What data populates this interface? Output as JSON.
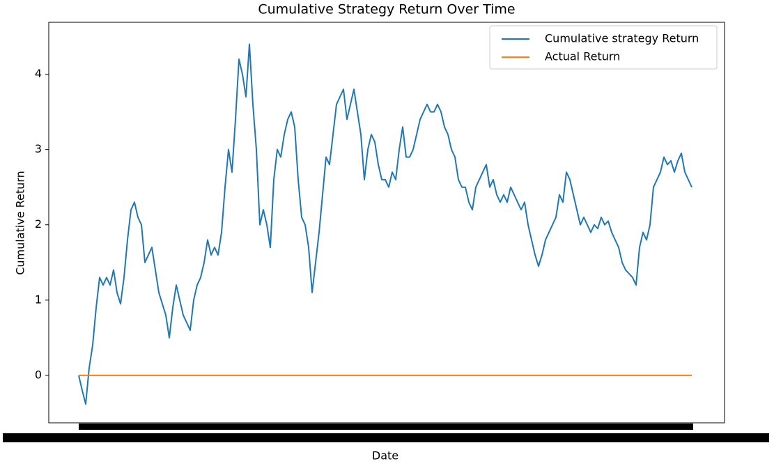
{
  "chart_data": {
    "type": "line",
    "title": "Cumulative Strategy Return Over Time",
    "x_label": "Date",
    "y_label": "Cumulative Return",
    "ylim": [
      -0.63,
      4.69
    ],
    "yticks": [
      0,
      1,
      2,
      3,
      4
    ],
    "grid": false,
    "legend": "upper right",
    "categories": [
      null,
      null,
      null,
      null,
      null,
      null,
      null,
      null,
      null,
      null,
      null,
      null,
      null,
      null,
      null,
      null,
      null,
      null,
      null,
      null,
      null,
      null,
      null,
      null,
      null,
      null,
      null,
      null,
      null,
      null,
      null,
      null,
      null,
      null,
      null,
      null,
      null,
      null,
      null,
      null,
      null,
      null,
      null,
      null,
      null,
      null,
      null,
      null,
      null,
      null,
      null,
      null,
      null,
      null,
      null,
      null,
      null,
      null,
      null,
      null,
      null,
      null,
      null,
      null,
      null,
      null,
      null,
      null,
      null,
      null,
      null,
      null,
      null,
      null,
      null,
      null,
      null,
      null,
      null,
      null,
      null,
      null,
      null,
      null,
      null,
      null,
      null,
      null,
      null,
      null,
      null,
      null,
      null,
      null,
      null,
      null,
      null,
      null,
      null,
      null,
      null,
      null,
      null,
      null,
      null,
      null,
      null,
      null,
      null,
      null,
      null,
      null,
      null,
      null,
      null,
      null,
      null,
      null,
      null,
      null,
      null,
      null,
      null,
      null,
      null,
      null,
      null,
      null,
      null,
      null,
      null,
      null,
      null,
      null,
      null,
      null,
      null,
      null,
      null,
      null,
      null,
      null,
      null,
      null,
      null,
      null,
      null,
      null,
      null,
      null,
      null,
      null,
      null,
      null,
      null,
      null,
      null,
      null,
      null,
      null,
      null,
      null,
      null,
      null,
      null,
      null,
      null,
      null,
      null,
      null,
      null,
      null,
      null,
      null,
      null,
      null,
      null
    ],
    "series": [
      {
        "name": "Cumulative strategy Return",
        "color": "#1f77b4",
        "values": [
          0,
          -0.2,
          -0.38,
          0.1,
          0.4,
          0.9,
          1.3,
          1.2,
          1.3,
          1.2,
          1.4,
          1.1,
          0.95,
          1.3,
          1.8,
          2.2,
          2.3,
          2.1,
          2.0,
          1.5,
          1.6,
          1.7,
          1.4,
          1.1,
          0.95,
          0.8,
          0.5,
          0.9,
          1.2,
          1.0,
          0.8,
          0.7,
          0.6,
          1.0,
          1.2,
          1.3,
          1.5,
          1.8,
          1.6,
          1.7,
          1.6,
          1.9,
          2.5,
          3.0,
          2.7,
          3.4,
          4.2,
          4.0,
          3.7,
          4.4,
          3.6,
          3.0,
          2.0,
          2.2,
          2.0,
          1.7,
          2.6,
          3.0,
          2.9,
          3.2,
          3.4,
          3.5,
          3.3,
          2.6,
          2.1,
          2.0,
          1.7,
          1.1,
          1.5,
          1.9,
          2.4,
          2.9,
          2.8,
          3.2,
          3.6,
          3.7,
          3.8,
          3.4,
          3.6,
          3.8,
          3.5,
          3.2,
          2.6,
          3.0,
          3.2,
          3.1,
          2.8,
          2.6,
          2.6,
          2.5,
          2.7,
          2.6,
          3.0,
          3.3,
          2.9,
          2.9,
          3.0,
          3.2,
          3.4,
          3.5,
          3.6,
          3.5,
          3.5,
          3.6,
          3.5,
          3.3,
          3.2,
          3.0,
          2.9,
          2.6,
          2.5,
          2.5,
          2.3,
          2.2,
          2.5,
          2.6,
          2.7,
          2.8,
          2.5,
          2.6,
          2.4,
          2.3,
          2.4,
          2.3,
          2.5,
          2.4,
          2.3,
          2.2,
          2.3,
          2.0,
          1.8,
          1.6,
          1.45,
          1.6,
          1.8,
          1.9,
          2.0,
          2.1,
          2.4,
          2.3,
          2.7,
          2.6,
          2.4,
          2.2,
          2.0,
          2.1,
          2.0,
          1.9,
          2.0,
          1.95,
          2.1,
          2.0,
          2.05,
          1.9,
          1.8,
          1.7,
          1.5,
          1.4,
          1.35,
          1.3,
          1.2,
          1.7,
          1.9,
          1.8,
          2.0,
          2.5,
          2.6,
          2.7,
          2.9,
          2.8,
          2.85,
          2.7,
          2.85,
          2.95,
          2.7,
          2.6,
          2.5
        ]
      },
      {
        "name": "Actual Return",
        "color": "#ff7f0e",
        "values": [
          0,
          0,
          0,
          0,
          0,
          0,
          0,
          0,
          0,
          0,
          0,
          0,
          0,
          0,
          0,
          0,
          0,
          0,
          0,
          0,
          0,
          0,
          0,
          0,
          0,
          0,
          0,
          0,
          0,
          0,
          0,
          0,
          0,
          0,
          0,
          0,
          0,
          0,
          0,
          0,
          0,
          0,
          0,
          0,
          0,
          0,
          0,
          0,
          0,
          0,
          0,
          0,
          0,
          0,
          0,
          0,
          0,
          0,
          0,
          0,
          0,
          0,
          0,
          0,
          0,
          0,
          0,
          0,
          0,
          0,
          0,
          0,
          0,
          0,
          0,
          0,
          0,
          0,
          0,
          0,
          0,
          0,
          0,
          0,
          0,
          0,
          0,
          0,
          0,
          0,
          0,
          0,
          0,
          0,
          0,
          0,
          0,
          0,
          0,
          0,
          0,
          0,
          0,
          0,
          0,
          0,
          0,
          0,
          0,
          0,
          0,
          0,
          0,
          0,
          0,
          0,
          0,
          0,
          0,
          0,
          0,
          0,
          0,
          0,
          0,
          0,
          0,
          0,
          0,
          0,
          0,
          0,
          0,
          0,
          0,
          0,
          0,
          0,
          0,
          0,
          0,
          0,
          0,
          0,
          0,
          0,
          0,
          0,
          0,
          0,
          0,
          0,
          0,
          0,
          0,
          0,
          0,
          0,
          0,
          0,
          0,
          0,
          0,
          0,
          0,
          0,
          0,
          0,
          0,
          0,
          0,
          0,
          0,
          0,
          0,
          0,
          0
        ]
      }
    ]
  }
}
